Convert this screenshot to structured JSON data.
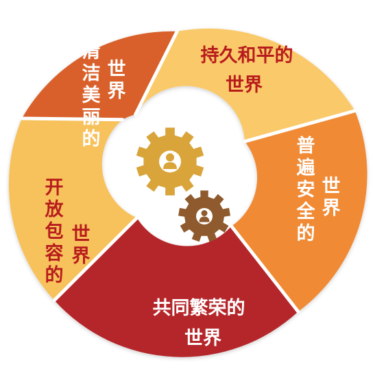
{
  "segments": [
    {
      "id": "lasting-peace",
      "lines": [
        "持久和平的",
        "世界"
      ],
      "fill": "#FAC96A",
      "text_color": "#B71C1C"
    },
    {
      "id": "common-security",
      "lines": [
        "普遍安全的",
        "世界"
      ],
      "fill": "#F08A34",
      "text_color": "#FFFFFF"
    },
    {
      "id": "common-prosperity",
      "lines": [
        "共同繁荣的",
        "世界"
      ],
      "fill": "#B5262A",
      "text_color": "#FFFFFF"
    },
    {
      "id": "open-inclusive",
      "lines": [
        "开放包容的",
        "世界"
      ],
      "fill": "#F7C15C",
      "text_color": "#B71C1C"
    },
    {
      "id": "clean-beautiful",
      "lines": [
        "清洁美丽的",
        "世界"
      ],
      "fill": "#D9612A",
      "text_color": "#FFFFFF"
    }
  ],
  "center": {
    "gear_large_icon": "gear-person-icon",
    "gear_small_icon": "gear-person-icon",
    "gear_large_color": "#D9A43A",
    "gear_small_color": "#8E5A2E"
  }
}
